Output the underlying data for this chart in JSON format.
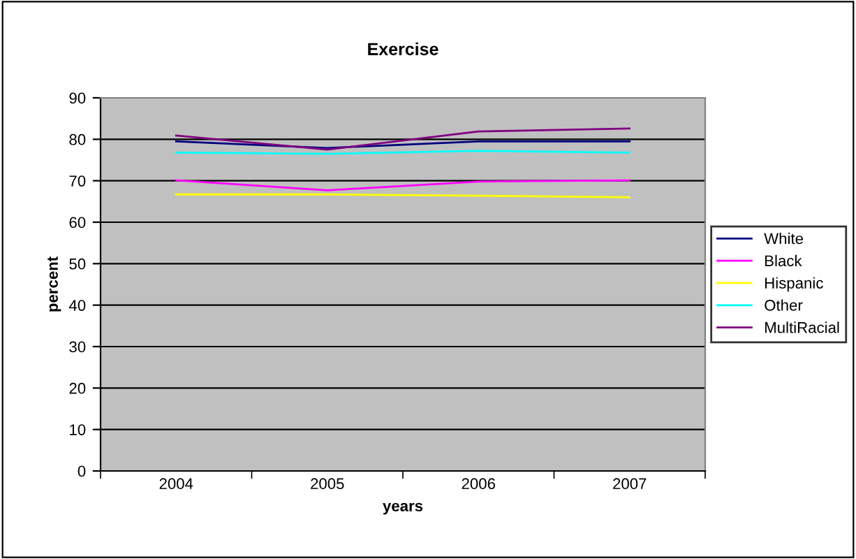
{
  "chart_data": {
    "type": "line",
    "title": "Exercise",
    "xlabel": "years",
    "ylabel": "percent",
    "categories": [
      "2004",
      "2005",
      "2006",
      "2007"
    ],
    "series": [
      {
        "name": "White",
        "color": "#000080",
        "values": [
          79.5,
          77.9,
          79.5,
          79.5
        ]
      },
      {
        "name": "Black",
        "color": "#ff00ff",
        "values": [
          70.1,
          67.7,
          69.8,
          70.1
        ]
      },
      {
        "name": "Hispanic",
        "color": "#ffff00",
        "values": [
          66.7,
          66.7,
          66.4,
          66.0
        ]
      },
      {
        "name": "Other",
        "color": "#00ffff",
        "values": [
          76.8,
          76.5,
          77.2,
          76.8
        ]
      },
      {
        "name": "MultiRacial",
        "color": "#800080",
        "values": [
          80.9,
          77.5,
          81.9,
          82.6
        ]
      }
    ],
    "ylim": [
      0,
      90
    ],
    "yticks": [
      0,
      10,
      20,
      30,
      40,
      50,
      60,
      70,
      80,
      90
    ],
    "grid": "y",
    "legend": "right",
    "marker": "none"
  }
}
